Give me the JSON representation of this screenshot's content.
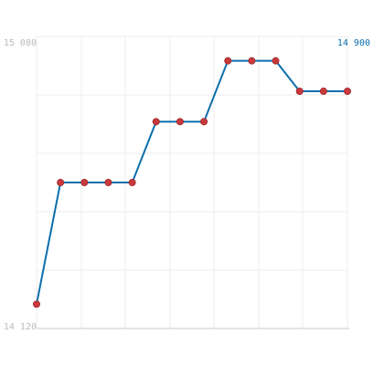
{
  "colors": {
    "line": "#0b6fad",
    "marker_fill": "#c8393b",
    "marker_stroke": "#9c2a2c",
    "grid": "#ececec",
    "axis": "#c8c8c8",
    "tick_text": "#bbbbbb",
    "last_value_text": "#0b6fad"
  },
  "y_axis": {
    "top_label": "15 080",
    "bottom_label": "14 120"
  },
  "last_value_label": "14 900",
  "chart_data": {
    "type": "line",
    "title": "",
    "xlabel": "",
    "ylabel": "",
    "ylim": [
      14120,
      15080
    ],
    "x": [
      1,
      2,
      3,
      4,
      5,
      6,
      7,
      8,
      9,
      10,
      11,
      12,
      13,
      14
    ],
    "series": [
      {
        "values": [
          14200,
          14600,
          14600,
          14600,
          14600,
          14800,
          14800,
          14800,
          15000,
          15000,
          15000,
          14900,
          14900,
          14900
        ]
      }
    ],
    "grid": true,
    "legend": "none"
  }
}
